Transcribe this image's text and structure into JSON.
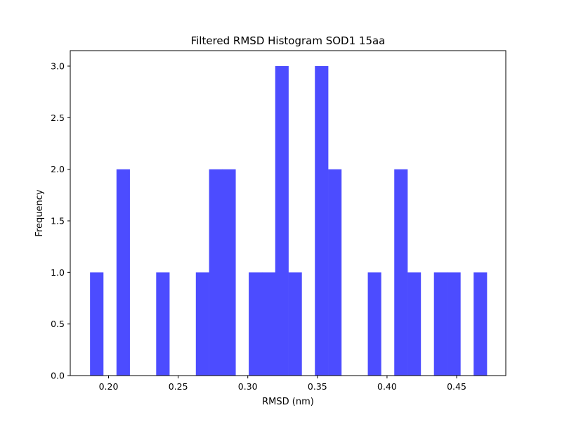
{
  "chart_data": {
    "type": "bar",
    "title": "Filtered RMSD Histogram SOD1 15aa",
    "xlabel": "RMSD (nm)",
    "ylabel": "Frequency",
    "xlim": [
      0.1725,
      0.4853
    ],
    "ylim": [
      0,
      3.15
    ],
    "bin_width": 0.00951,
    "bin_edges": [
      0.1867,
      0.1962,
      0.2057,
      0.2152,
      0.2247,
      0.2342,
      0.2437,
      0.2532,
      0.2627,
      0.2722,
      0.2817,
      0.2912,
      0.3007,
      0.3102,
      0.3197,
      0.3292,
      0.3387,
      0.3482,
      0.3577,
      0.3672,
      0.3767,
      0.3862,
      0.3957,
      0.4052,
      0.4147,
      0.4242,
      0.4337,
      0.4432,
      0.4527,
      0.4622,
      0.4717
    ],
    "values": [
      1,
      0,
      2,
      0,
      0,
      1,
      0,
      0,
      1,
      2,
      2,
      0,
      1,
      1,
      3,
      1,
      0,
      3,
      2,
      0,
      0,
      1,
      0,
      2,
      1,
      0,
      1,
      1,
      0,
      1
    ],
    "bar_color": "#4c4cff",
    "x_ticks": [
      {
        "value": 0.2,
        "label": "0.20"
      },
      {
        "value": 0.25,
        "label": "0.25"
      },
      {
        "value": 0.3,
        "label": "0.30"
      },
      {
        "value": 0.35,
        "label": "0.35"
      },
      {
        "value": 0.4,
        "label": "0.40"
      },
      {
        "value": 0.45,
        "label": "0.45"
      }
    ],
    "y_ticks": [
      {
        "value": 0.0,
        "label": "0.0"
      },
      {
        "value": 0.5,
        "label": "0.5"
      },
      {
        "value": 1.0,
        "label": "1.0"
      },
      {
        "value": 1.5,
        "label": "1.5"
      },
      {
        "value": 2.0,
        "label": "2.0"
      },
      {
        "value": 2.5,
        "label": "2.5"
      },
      {
        "value": 3.0,
        "label": "3.0"
      }
    ],
    "grid": false,
    "legend": "none"
  }
}
